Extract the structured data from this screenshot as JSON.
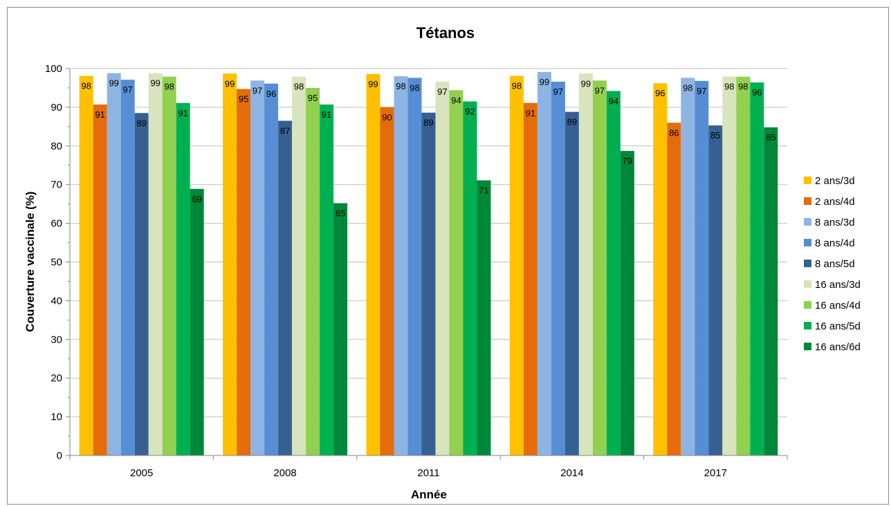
{
  "chart_data": {
    "type": "bar",
    "title": "Tétanos",
    "xlabel": "Année",
    "ylabel": "Couverture vaccinale (%)",
    "ylim": [
      0,
      100
    ],
    "yticks": [
      0,
      10,
      20,
      30,
      40,
      50,
      60,
      70,
      80,
      90,
      100
    ],
    "grid": true,
    "legend_position": "right",
    "categories": [
      "2005",
      "2008",
      "2011",
      "2014",
      "2017"
    ],
    "series": [
      {
        "name": "2 ans/3d",
        "color": "#ffc000",
        "values": [
          98.1,
          98.7,
          98.6,
          98.1,
          96.2
        ],
        "labels": [
          "98",
          "99",
          "99",
          "98",
          "96"
        ]
      },
      {
        "name": "2 ans/4d",
        "color": "#e46c0a",
        "values": [
          90.7,
          94.7,
          90.0,
          91.1,
          86.0
        ],
        "labels": [
          "91",
          "95",
          "90",
          "91",
          "86"
        ]
      },
      {
        "name": "8 ans/3d",
        "color": "#8eb4e3",
        "values": [
          98.8,
          96.9,
          98.0,
          99.1,
          97.6
        ],
        "labels": [
          "99",
          "97",
          "98",
          "99",
          "98"
        ]
      },
      {
        "name": "8 ans/4d",
        "color": "#558ed5",
        "values": [
          97.1,
          96.1,
          97.6,
          96.6,
          96.8
        ],
        "labels": [
          "97",
          "96",
          "98",
          "97",
          "97"
        ]
      },
      {
        "name": "8 ans/5d",
        "color": "#376092",
        "values": [
          88.5,
          86.5,
          88.6,
          88.8,
          85.3
        ],
        "labels": [
          "89",
          "87",
          "89",
          "89",
          "85"
        ]
      },
      {
        "name": "16 ans/3d",
        "color": "#d7e4bd",
        "values": [
          98.8,
          97.9,
          96.6,
          98.7,
          97.9
        ],
        "labels": [
          "99",
          "98",
          "97",
          "99",
          "98"
        ]
      },
      {
        "name": "16 ans/4d",
        "color": "#92d050",
        "values": [
          97.9,
          95.0,
          94.4,
          96.9,
          97.9
        ],
        "labels": [
          "98",
          "95",
          "94",
          "97",
          "98"
        ]
      },
      {
        "name": "16 ans/5d",
        "color": "#00b050",
        "values": [
          91.1,
          90.7,
          91.5,
          94.2,
          96.4
        ],
        "labels": [
          "91",
          "91",
          "92",
          "94",
          "96"
        ]
      },
      {
        "name": "16 ans/6d",
        "color": "#00883a",
        "values": [
          68.9,
          65.2,
          71.1,
          78.7,
          84.8
        ],
        "labels": [
          "69",
          "65",
          "71",
          "79",
          "85"
        ]
      }
    ]
  }
}
